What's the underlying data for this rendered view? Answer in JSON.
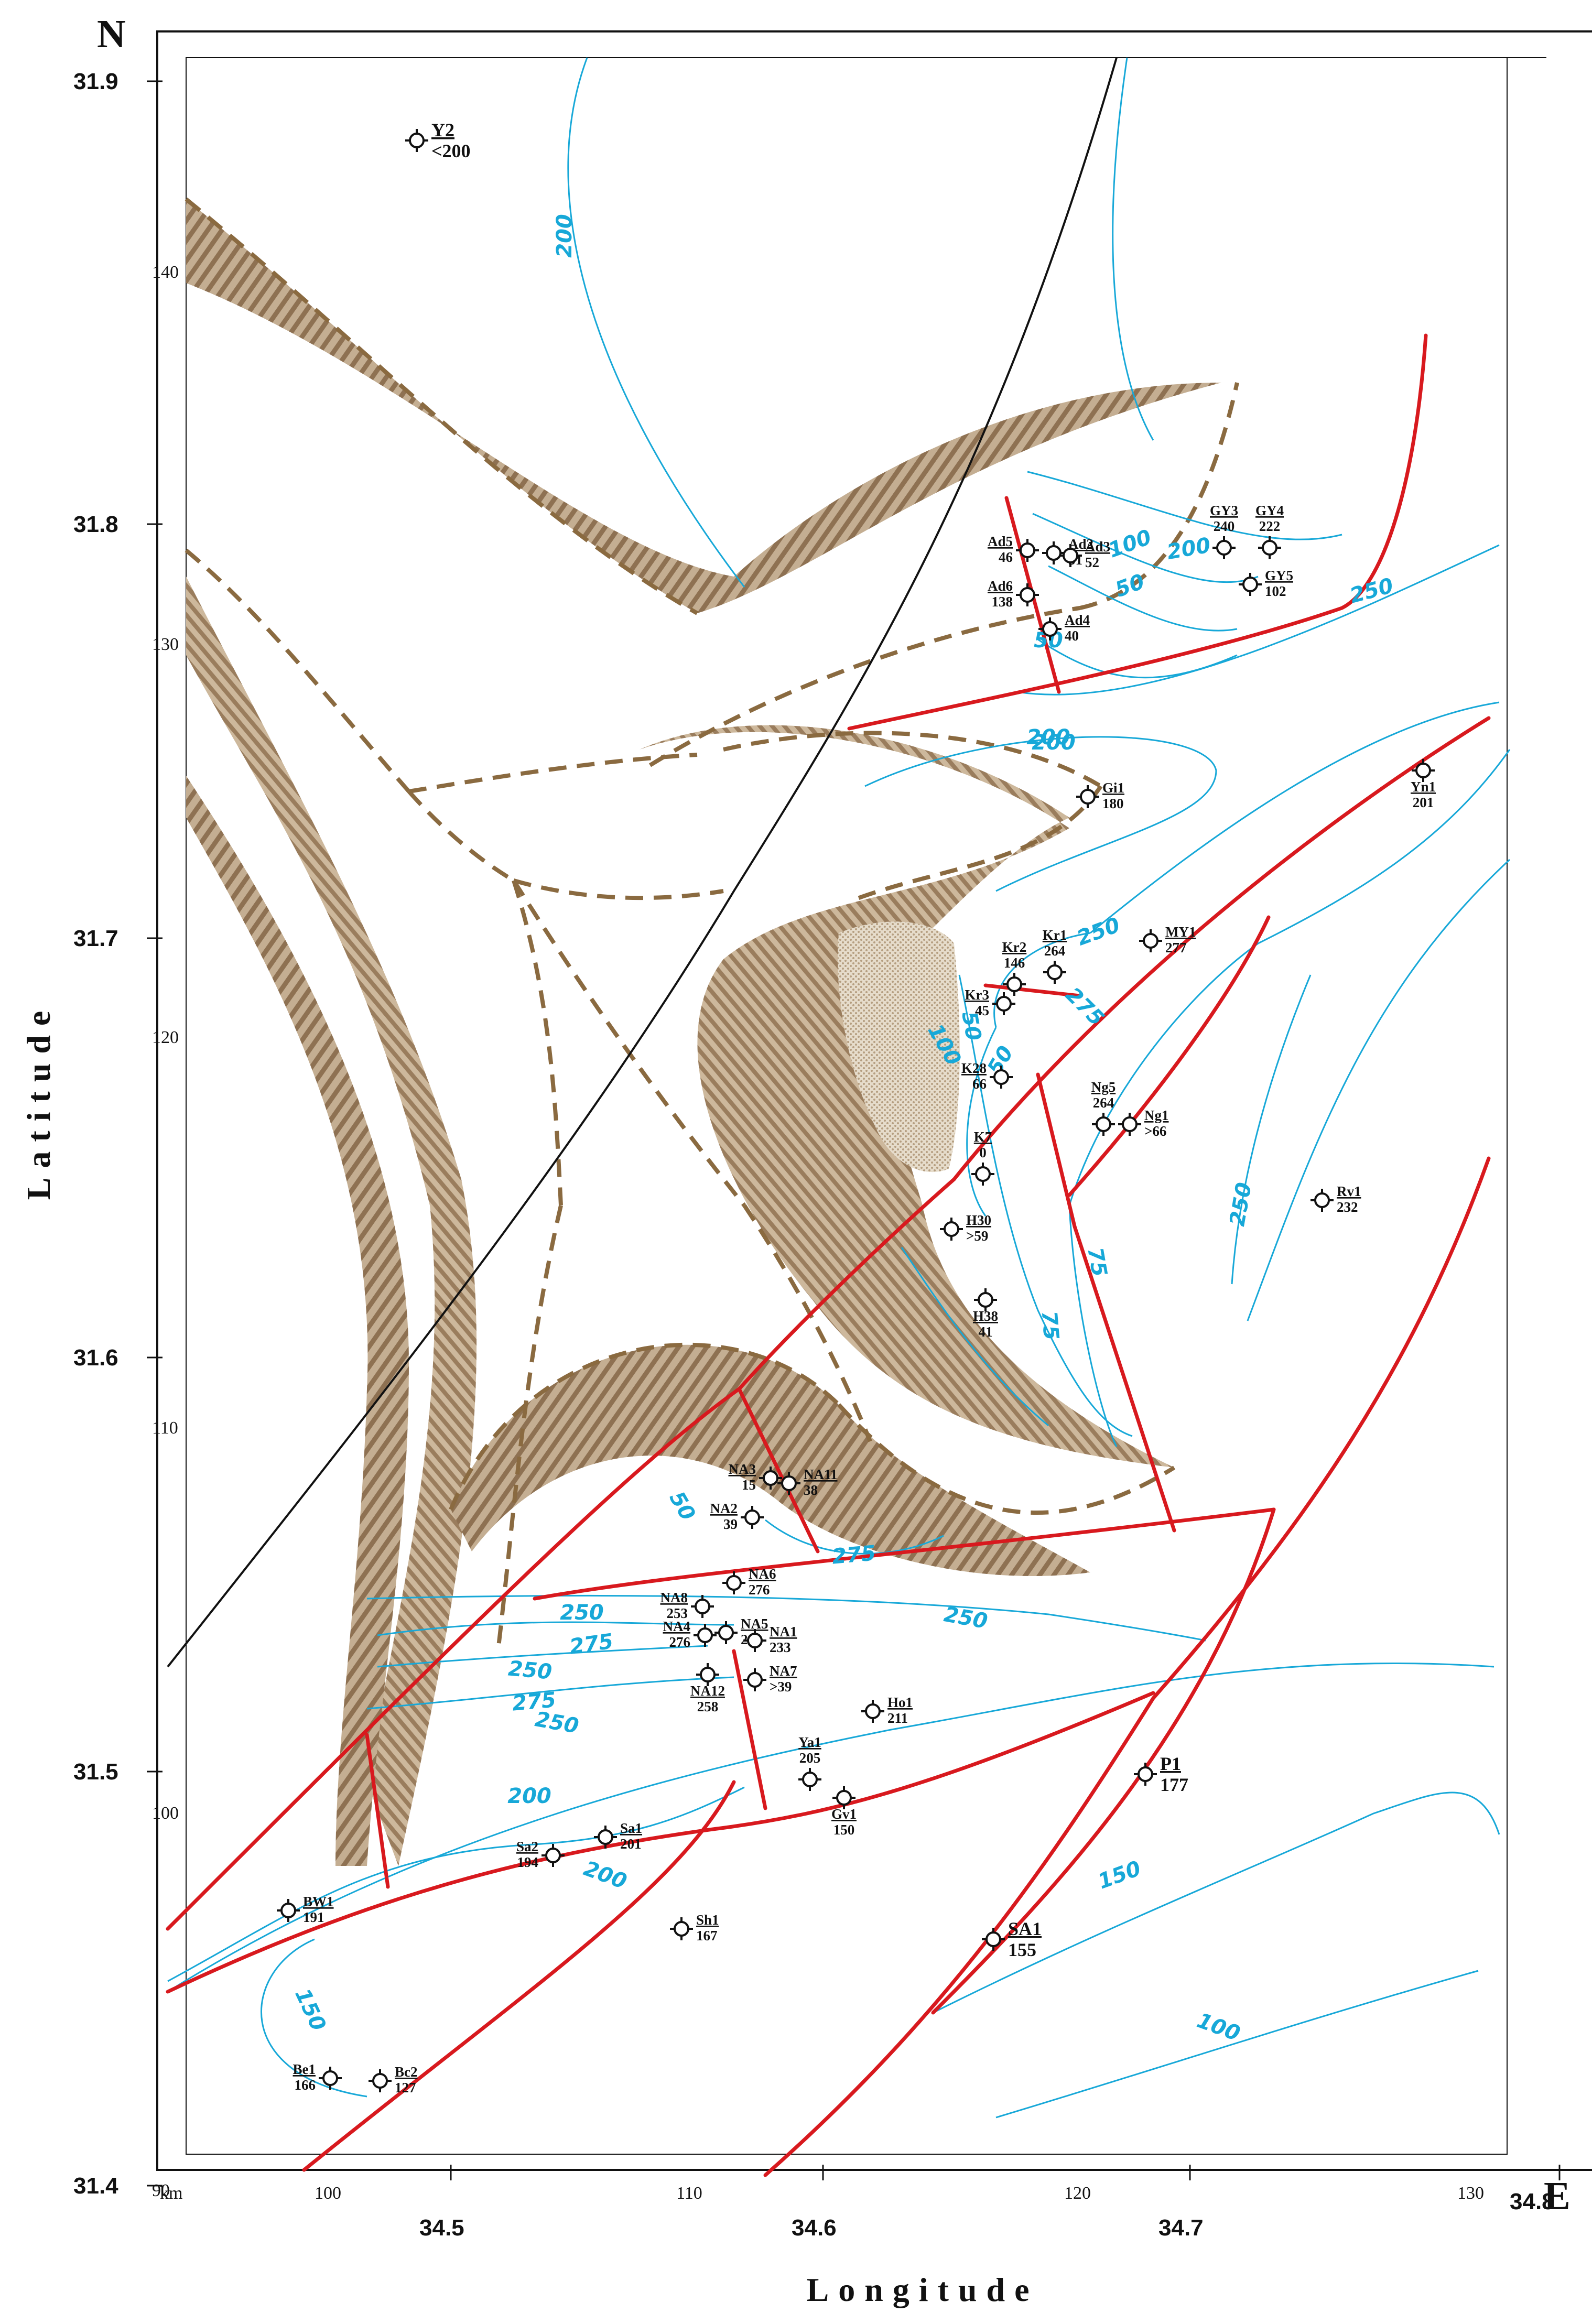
{
  "map": {
    "north_label": "N",
    "east_label": "E",
    "km_label": "km",
    "x_axis_title": "Longitude",
    "y_axis_title": "Latitude",
    "lon_ticks": [
      "34.5",
      "34.6",
      "34.7",
      "34.8"
    ],
    "lat_ticks": [
      "31.9",
      "31.8",
      "31.7",
      "31.6",
      "31.5",
      "31.4"
    ],
    "km_x_ticks": [
      "100",
      "110",
      "120",
      "130"
    ],
    "km_y_ticks": [
      "140",
      "130",
      "120",
      "110",
      "100",
      "90"
    ],
    "contour_labels": [
      "200",
      "100",
      "50",
      "200",
      "50",
      "250",
      "200",
      "200",
      "250",
      "50",
      "100",
      "275",
      "50",
      "75",
      "250",
      "75",
      "50",
      "275",
      "250",
      "275",
      "250",
      "275",
      "250",
      "250",
      "200",
      "200",
      "150",
      "150",
      "100"
    ],
    "wells": [
      {
        "name": "Y2",
        "value": "<200"
      },
      {
        "name": "Ad5",
        "value": "46"
      },
      {
        "name": "Ad2",
        "value": "51"
      },
      {
        "name": "Ad3",
        "value": "52"
      },
      {
        "name": "Ad6",
        "value": "138"
      },
      {
        "name": "Ad4",
        "value": "40"
      },
      {
        "name": "GY3",
        "value": "240"
      },
      {
        "name": "GY4",
        "value": "222"
      },
      {
        "name": "GY5",
        "value": "102"
      },
      {
        "name": "Gi1",
        "value": "180"
      },
      {
        "name": "Yn1",
        "value": "201"
      },
      {
        "name": "Kr1",
        "value": "264"
      },
      {
        "name": "Kr2",
        "value": "146"
      },
      {
        "name": "Kr3",
        "value": "45"
      },
      {
        "name": "MY1",
        "value": "277"
      },
      {
        "name": "K28",
        "value": "66"
      },
      {
        "name": "Ng5",
        "value": "264"
      },
      {
        "name": "Ng1",
        "value": ">66"
      },
      {
        "name": "K7",
        "value": "0"
      },
      {
        "name": "H30",
        "value": ">59"
      },
      {
        "name": "Rv1",
        "value": "232"
      },
      {
        "name": "H38",
        "value": "41"
      },
      {
        "name": "NA3",
        "value": "15"
      },
      {
        "name": "NA11",
        "value": "38"
      },
      {
        "name": "NA2",
        "value": "39"
      },
      {
        "name": "NA8",
        "value": "253"
      },
      {
        "name": "NA6",
        "value": "276"
      },
      {
        "name": "NA4",
        "value": "276"
      },
      {
        "name": "NA5",
        "value": "262"
      },
      {
        "name": "NA1",
        "value": "233"
      },
      {
        "name": "NA7",
        "value": ">39"
      },
      {
        "name": "NA12",
        "value": "258"
      },
      {
        "name": "Ho1",
        "value": "211"
      },
      {
        "name": "Ya1",
        "value": "205"
      },
      {
        "name": "Gv1",
        "value": "150"
      },
      {
        "name": "P1",
        "value": "177"
      },
      {
        "name": "Sa1",
        "value": "201"
      },
      {
        "name": "Sa2",
        "value": "194"
      },
      {
        "name": "Sh1",
        "value": "167"
      },
      {
        "name": "BW1",
        "value": "191"
      },
      {
        "name": "SA1",
        "value": "155"
      },
      {
        "name": "Be1",
        "value": "166"
      },
      {
        "name": "Bc2",
        "value": "127"
      }
    ],
    "colors": {
      "contour": "#17a8d8",
      "fault": "#d8191e",
      "structure_fill": "#a88c6c",
      "structure_dash": "#8a6a40",
      "coastline": "#111111",
      "frame": "#111111"
    }
  }
}
